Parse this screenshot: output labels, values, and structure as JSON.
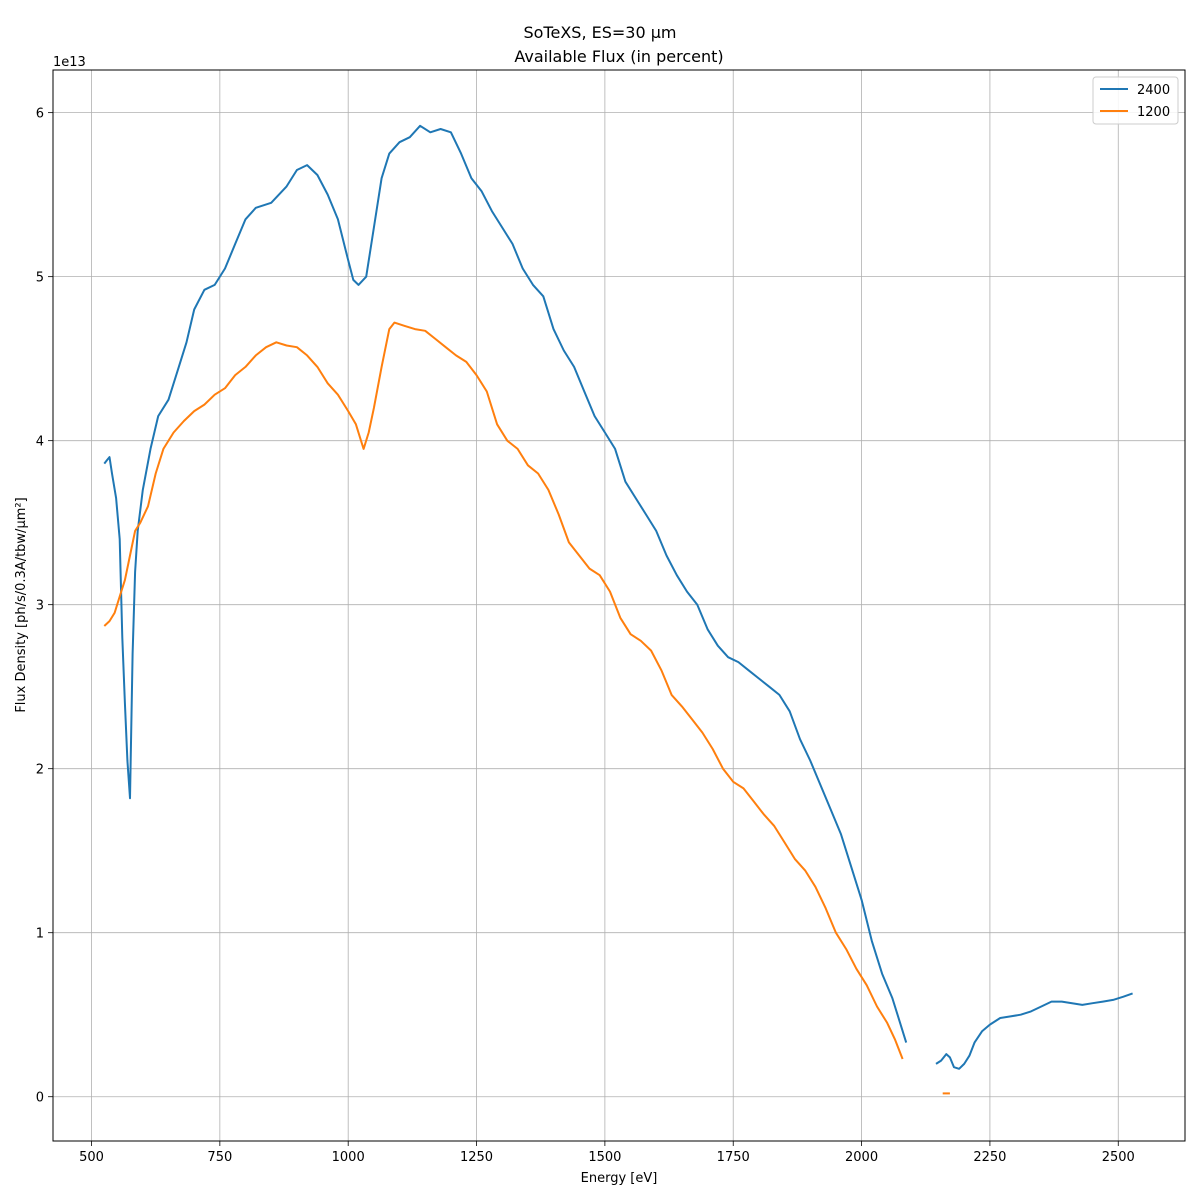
{
  "chart_data": {
    "type": "line",
    "suptitle": "SoTeXS, ES=30 µm",
    "title": "Available Flux (in percent)",
    "xlabel": "Energy [eV]",
    "ylabel": "Flux Density [ph/s/0.3A/tbw/µm²]",
    "y_offset_label": "1e13",
    "xlim": [
      425,
      2630
    ],
    "ylim": [
      -0.27,
      6.26
    ],
    "y_unit_scale": 10000000000000.0,
    "grid": true,
    "legend_position": "top-right",
    "x_ticks": [
      500,
      750,
      1000,
      1250,
      1500,
      1750,
      2000,
      2250,
      2500
    ],
    "x_tick_labels": [
      "500",
      "750",
      "1000",
      "1250",
      "1500",
      "1750",
      "2000",
      "2250",
      "2500"
    ],
    "y_ticks": [
      0,
      1,
      2,
      3,
      4,
      5,
      6
    ],
    "y_tick_labels": [
      "0",
      "1",
      "2",
      "3",
      "4",
      "5",
      "6"
    ],
    "series": [
      {
        "name": "2400",
        "color": "#1f77b4",
        "segments": [
          [
            [
              525,
              3.86
            ],
            [
              530,
              3.88
            ],
            [
              535,
              3.9
            ],
            [
              540,
              3.8
            ],
            [
              548,
              3.65
            ],
            [
              555,
              3.4
            ],
            [
              560,
              2.8
            ],
            [
              565,
              2.4
            ],
            [
              570,
              2.05
            ],
            [
              575,
              1.82
            ],
            [
              580,
              2.7
            ],
            [
              585,
              3.2
            ],
            [
              590,
              3.45
            ],
            [
              600,
              3.7
            ],
            [
              615,
              3.95
            ],
            [
              630,
              4.15
            ],
            [
              650,
              4.25
            ],
            [
              670,
              4.45
            ],
            [
              685,
              4.6
            ],
            [
              700,
              4.8
            ],
            [
              720,
              4.92
            ],
            [
              740,
              4.95
            ],
            [
              760,
              5.05
            ],
            [
              780,
              5.2
            ],
            [
              800,
              5.35
            ],
            [
              820,
              5.42
            ],
            [
              850,
              5.45
            ],
            [
              880,
              5.55
            ],
            [
              900,
              5.65
            ],
            [
              920,
              5.68
            ],
            [
              940,
              5.62
            ],
            [
              960,
              5.5
            ],
            [
              980,
              5.35
            ],
            [
              1000,
              5.1
            ],
            [
              1010,
              4.98
            ],
            [
              1020,
              4.95
            ],
            [
              1035,
              5.0
            ],
            [
              1050,
              5.3
            ],
            [
              1065,
              5.6
            ],
            [
              1080,
              5.75
            ],
            [
              1100,
              5.82
            ],
            [
              1120,
              5.85
            ],
            [
              1140,
              5.92
            ],
            [
              1160,
              5.88
            ],
            [
              1180,
              5.9
            ],
            [
              1200,
              5.88
            ],
            [
              1220,
              5.75
            ],
            [
              1240,
              5.6
            ],
            [
              1260,
              5.52
            ],
            [
              1280,
              5.4
            ],
            [
              1300,
              5.3
            ],
            [
              1320,
              5.2
            ],
            [
              1340,
              5.05
            ],
            [
              1360,
              4.95
            ],
            [
              1380,
              4.88
            ],
            [
              1400,
              4.68
            ],
            [
              1420,
              4.55
            ],
            [
              1440,
              4.45
            ],
            [
              1460,
              4.3
            ],
            [
              1480,
              4.15
            ],
            [
              1500,
              4.05
            ],
            [
              1520,
              3.95
            ],
            [
              1540,
              3.75
            ],
            [
              1560,
              3.65
            ],
            [
              1580,
              3.55
            ],
            [
              1600,
              3.45
            ],
            [
              1620,
              3.3
            ],
            [
              1640,
              3.18
            ],
            [
              1660,
              3.08
            ],
            [
              1680,
              3.0
            ],
            [
              1700,
              2.85
            ],
            [
              1720,
              2.75
            ],
            [
              1740,
              2.68
            ],
            [
              1760,
              2.65
            ],
            [
              1780,
              2.6
            ],
            [
              1800,
              2.55
            ],
            [
              1820,
              2.5
            ],
            [
              1840,
              2.45
            ],
            [
              1860,
              2.35
            ],
            [
              1880,
              2.18
            ],
            [
              1900,
              2.05
            ],
            [
              1920,
              1.9
            ],
            [
              1940,
              1.75
            ],
            [
              1960,
              1.6
            ],
            [
              1980,
              1.4
            ],
            [
              2000,
              1.2
            ],
            [
              2020,
              0.95
            ],
            [
              2040,
              0.75
            ],
            [
              2060,
              0.6
            ],
            [
              2075,
              0.45
            ],
            [
              2087,
              0.33
            ]
          ],
          [
            [
              2145,
              0.2
            ],
            [
              2155,
              0.22
            ],
            [
              2165,
              0.26
            ],
            [
              2172,
              0.24
            ],
            [
              2180,
              0.18
            ],
            [
              2190,
              0.17
            ],
            [
              2200,
              0.2
            ],
            [
              2210,
              0.25
            ],
            [
              2220,
              0.33
            ],
            [
              2235,
              0.4
            ],
            [
              2250,
              0.44
            ],
            [
              2270,
              0.48
            ],
            [
              2290,
              0.49
            ],
            [
              2310,
              0.5
            ],
            [
              2330,
              0.52
            ],
            [
              2350,
              0.55
            ],
            [
              2370,
              0.58
            ],
            [
              2390,
              0.58
            ],
            [
              2410,
              0.57
            ],
            [
              2430,
              0.56
            ],
            [
              2450,
              0.57
            ],
            [
              2470,
              0.58
            ],
            [
              2490,
              0.59
            ],
            [
              2510,
              0.61
            ],
            [
              2528,
              0.63
            ]
          ]
        ]
      },
      {
        "name": "1200",
        "color": "#ff7f0e",
        "segments": [
          [
            [
              525,
              2.87
            ],
            [
              535,
              2.9
            ],
            [
              545,
              2.95
            ],
            [
              555,
              3.05
            ],
            [
              565,
              3.15
            ],
            [
              575,
              3.3
            ],
            [
              585,
              3.45
            ],
            [
              595,
              3.5
            ],
            [
              610,
              3.6
            ],
            [
              625,
              3.8
            ],
            [
              640,
              3.95
            ],
            [
              660,
              4.05
            ],
            [
              680,
              4.12
            ],
            [
              700,
              4.18
            ],
            [
              720,
              4.22
            ],
            [
              740,
              4.28
            ],
            [
              760,
              4.32
            ],
            [
              780,
              4.4
            ],
            [
              800,
              4.45
            ],
            [
              820,
              4.52
            ],
            [
              840,
              4.57
            ],
            [
              860,
              4.6
            ],
            [
              880,
              4.58
            ],
            [
              900,
              4.57
            ],
            [
              920,
              4.52
            ],
            [
              940,
              4.45
            ],
            [
              960,
              4.35
            ],
            [
              980,
              4.28
            ],
            [
              1000,
              4.18
            ],
            [
              1015,
              4.1
            ],
            [
              1025,
              4.0
            ],
            [
              1030,
              3.95
            ],
            [
              1040,
              4.05
            ],
            [
              1050,
              4.2
            ],
            [
              1065,
              4.45
            ],
            [
              1080,
              4.68
            ],
            [
              1090,
              4.72
            ],
            [
              1110,
              4.7
            ],
            [
              1130,
              4.68
            ],
            [
              1150,
              4.67
            ],
            [
              1170,
              4.62
            ],
            [
              1190,
              4.57
            ],
            [
              1210,
              4.52
            ],
            [
              1230,
              4.48
            ],
            [
              1250,
              4.4
            ],
            [
              1270,
              4.3
            ],
            [
              1290,
              4.1
            ],
            [
              1310,
              4.0
            ],
            [
              1330,
              3.95
            ],
            [
              1350,
              3.85
            ],
            [
              1370,
              3.8
            ],
            [
              1390,
              3.7
            ],
            [
              1410,
              3.55
            ],
            [
              1430,
              3.38
            ],
            [
              1450,
              3.3
            ],
            [
              1470,
              3.22
            ],
            [
              1490,
              3.18
            ],
            [
              1510,
              3.08
            ],
            [
              1530,
              2.92
            ],
            [
              1550,
              2.82
            ],
            [
              1570,
              2.78
            ],
            [
              1590,
              2.72
            ],
            [
              1610,
              2.6
            ],
            [
              1630,
              2.45
            ],
            [
              1650,
              2.38
            ],
            [
              1670,
              2.3
            ],
            [
              1690,
              2.22
            ],
            [
              1710,
              2.12
            ],
            [
              1730,
              2.0
            ],
            [
              1750,
              1.92
            ],
            [
              1770,
              1.88
            ],
            [
              1790,
              1.8
            ],
            [
              1810,
              1.72
            ],
            [
              1830,
              1.65
            ],
            [
              1850,
              1.55
            ],
            [
              1870,
              1.45
            ],
            [
              1890,
              1.38
            ],
            [
              1910,
              1.28
            ],
            [
              1930,
              1.15
            ],
            [
              1950,
              1.0
            ],
            [
              1970,
              0.9
            ],
            [
              1990,
              0.78
            ],
            [
              2010,
              0.68
            ],
            [
              2030,
              0.55
            ],
            [
              2050,
              0.45
            ],
            [
              2065,
              0.35
            ],
            [
              2080,
              0.23
            ]
          ],
          [
            [
              2158,
              0.02
            ],
            [
              2172,
              0.02
            ]
          ]
        ]
      }
    ]
  }
}
